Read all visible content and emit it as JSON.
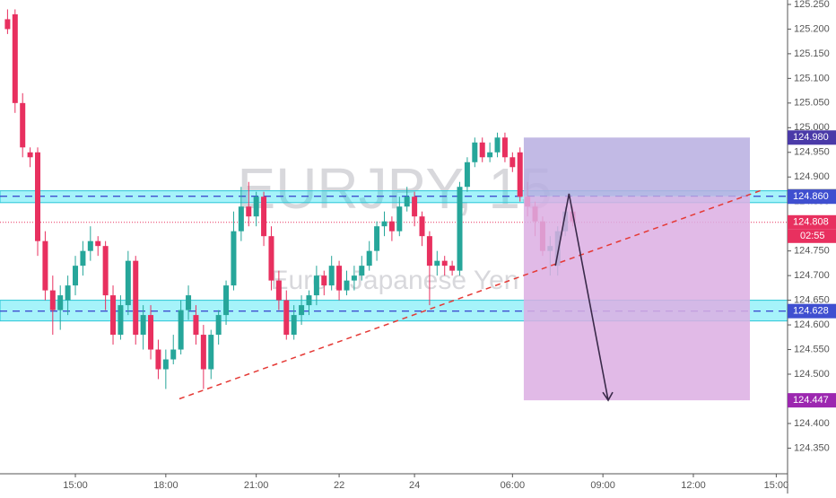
{
  "chart_data": {
    "type": "candlestick",
    "watermark": {
      "symbol": "EURJPY, 15",
      "description": "Euro / Japanese Yen"
    },
    "x": [
      0,
      1,
      2,
      3,
      4,
      5,
      6,
      7,
      8,
      9,
      10,
      11,
      12,
      13,
      14,
      15,
      16,
      17,
      18,
      19,
      20,
      21,
      22,
      23,
      24,
      25,
      26,
      27,
      28,
      29,
      30,
      31,
      32,
      33,
      34,
      35,
      36,
      37,
      38,
      39,
      40,
      41,
      42,
      43,
      44,
      45,
      46,
      47,
      48,
      49,
      50,
      51,
      52,
      53,
      54,
      55,
      56,
      57,
      58,
      59,
      60,
      61,
      62,
      63,
      64,
      65,
      66,
      67,
      68,
      69,
      70,
      71,
      72,
      73,
      74,
      75
    ],
    "open": [
      125.22,
      125.23,
      125.05,
      124.95,
      124.95,
      124.77,
      124.67,
      124.63,
      124.65,
      124.68,
      124.72,
      124.75,
      124.77,
      124.76,
      124.66,
      124.58,
      124.64,
      124.73,
      124.58,
      124.62,
      124.55,
      124.51,
      124.53,
      124.55,
      124.63,
      124.62,
      124.58,
      124.51,
      124.58,
      124.62,
      124.68,
      124.79,
      124.84,
      124.82,
      124.86,
      124.78,
      124.69,
      124.65,
      124.58,
      124.62,
      124.64,
      124.66,
      124.7,
      124.68,
      124.72,
      124.67,
      124.69,
      124.7,
      124.72,
      124.75,
      124.8,
      124.81,
      124.79,
      124.84,
      124.86,
      124.82,
      124.78,
      124.72,
      124.73,
      124.72,
      124.71,
      124.88,
      124.93,
      124.97,
      124.94,
      124.95,
      124.98,
      124.94,
      124.95,
      124.86,
      124.84,
      124.81,
      124.75,
      124.72,
      124.79,
      124.83
    ],
    "high": [
      125.24,
      125.24,
      125.07,
      124.96,
      124.96,
      124.79,
      124.7,
      124.68,
      124.7,
      124.74,
      124.77,
      124.8,
      124.78,
      124.77,
      124.68,
      124.66,
      124.75,
      124.74,
      124.64,
      124.64,
      124.57,
      124.55,
      124.58,
      124.65,
      124.68,
      124.64,
      124.6,
      124.59,
      124.63,
      124.69,
      124.83,
      124.88,
      124.89,
      124.87,
      124.87,
      124.8,
      124.71,
      124.67,
      124.64,
      124.66,
      124.67,
      124.72,
      124.71,
      124.74,
      124.73,
      124.71,
      124.72,
      124.74,
      124.77,
      124.81,
      124.83,
      124.82,
      124.86,
      124.88,
      124.87,
      124.83,
      124.79,
      124.75,
      124.74,
      124.73,
      124.89,
      124.94,
      124.98,
      124.98,
      124.97,
      124.99,
      124.99,
      124.95,
      124.96,
      124.89,
      124.85,
      124.82,
      124.78,
      124.8,
      124.84,
      124.84
    ],
    "low": [
      125.19,
      125.03,
      124.94,
      124.92,
      124.74,
      124.65,
      124.58,
      124.59,
      124.62,
      124.66,
      124.7,
      124.73,
      124.74,
      124.63,
      124.56,
      124.57,
      124.62,
      124.56,
      124.55,
      124.53,
      124.49,
      124.47,
      124.52,
      124.54,
      124.61,
      124.56,
      124.47,
      124.49,
      124.56,
      124.6,
      124.67,
      124.77,
      124.8,
      124.8,
      124.76,
      124.67,
      124.63,
      124.57,
      124.57,
      124.6,
      124.62,
      124.64,
      124.66,
      124.67,
      124.65,
      124.66,
      124.67,
      124.69,
      124.71,
      124.73,
      124.78,
      124.77,
      124.78,
      124.83,
      124.8,
      124.76,
      124.64,
      124.7,
      124.7,
      124.7,
      124.7,
      124.87,
      124.92,
      124.93,
      124.93,
      124.94,
      124.93,
      124.91,
      124.85,
      124.82,
      124.78,
      124.74,
      124.7,
      124.7,
      124.78,
      124.8
    ],
    "close": [
      125.2,
      125.05,
      124.96,
      124.94,
      124.77,
      124.67,
      124.63,
      124.66,
      124.68,
      124.72,
      124.75,
      124.77,
      124.76,
      124.66,
      124.58,
      124.64,
      124.73,
      124.58,
      124.62,
      124.55,
      124.51,
      124.53,
      124.55,
      124.63,
      124.66,
      124.58,
      124.51,
      124.58,
      124.62,
      124.68,
      124.79,
      124.84,
      124.82,
      124.86,
      124.78,
      124.69,
      124.65,
      124.58,
      124.62,
      124.64,
      124.66,
      124.7,
      124.68,
      124.72,
      124.67,
      124.69,
      124.7,
      124.72,
      124.75,
      124.8,
      124.81,
      124.79,
      124.84,
      124.86,
      124.82,
      124.78,
      124.72,
      124.73,
      124.72,
      124.71,
      124.88,
      124.93,
      124.97,
      124.94,
      124.95,
      124.98,
      124.94,
      124.92,
      124.86,
      124.84,
      124.81,
      124.75,
      124.76,
      124.79,
      124.83,
      124.81
    ],
    "up_color": "#26a69a",
    "down_color": "#e8305f",
    "xlim": [
      -1,
      103.5
    ],
    "xticks": [
      {
        "value": 9,
        "label": "15:00"
      },
      {
        "value": 21,
        "label": "18:00"
      },
      {
        "value": 33,
        "label": "21:00"
      },
      {
        "value": 44,
        "label": "22"
      },
      {
        "value": 54,
        "label": "24"
      },
      {
        "value": 67,
        "label": "06:00"
      },
      {
        "value": 79,
        "label": "09:00"
      },
      {
        "value": 91,
        "label": "12:00"
      },
      {
        "value": 102,
        "label": "15:00"
      }
    ],
    "ylim": [
      124.298,
      125.259
    ],
    "yticks": [
      {
        "value": 125.25,
        "label": "125.250"
      },
      {
        "value": 125.2,
        "label": "125.200"
      },
      {
        "value": 125.15,
        "label": "125.150"
      },
      {
        "value": 125.1,
        "label": "125.100"
      },
      {
        "value": 125.05,
        "label": "125.050"
      },
      {
        "value": 125.0,
        "label": "125.000"
      },
      {
        "value": 124.95,
        "label": "124.950"
      },
      {
        "value": 124.9,
        "label": "124.900"
      },
      {
        "value": 124.85,
        "label": "124.850"
      },
      {
        "value": 124.8,
        "label": "124.800"
      },
      {
        "value": 124.75,
        "label": "124.750"
      },
      {
        "value": 124.7,
        "label": "124.700"
      },
      {
        "value": 124.65,
        "label": "124.650"
      },
      {
        "value": 124.6,
        "label": "124.600"
      },
      {
        "value": 124.55,
        "label": "124.550"
      },
      {
        "value": 124.5,
        "label": "124.500"
      },
      {
        "value": 124.45,
        "label": "124.450"
      },
      {
        "value": 124.4,
        "label": "124.400"
      },
      {
        "value": 124.35,
        "label": "124.350"
      }
    ],
    "zones": [
      {
        "low": 124.848,
        "high": 124.872,
        "line": 124.861
      },
      {
        "low": 124.608,
        "high": 124.65,
        "line": 124.628
      }
    ],
    "last_price_line": 124.808,
    "box": {
      "x": [
        68.5,
        98.5
      ],
      "top": 124.98,
      "mid": 124.861,
      "bottom": 124.447,
      "top_color": "#b7aee0",
      "bottom_color": "#dcaee3"
    },
    "trendline": {
      "x": [
        22.8,
        100.2
      ],
      "y": [
        124.45,
        124.874
      ]
    },
    "arrow": {
      "x": [
        72.7,
        74.5,
        79.7
      ],
      "y": [
        124.72,
        124.866,
        124.447
      ]
    },
    "price_labels": [
      {
        "value": 124.98,
        "label": "124.980",
        "color": "#4a3aa8"
      },
      {
        "value": 124.861,
        "label": "124.861",
        "color": "#787b86"
      },
      {
        "value": 124.86,
        "label": "124.860",
        "color": "#3f4fd0"
      },
      {
        "value": 124.808,
        "label": "124.808",
        "color": "#e8305f"
      },
      {
        "value": 124.628,
        "label": "124.628",
        "color": "#3f4fd0"
      },
      {
        "value": 124.447,
        "label": "124.447",
        "color": "#9c27b0"
      }
    ],
    "countdown": "02:55"
  }
}
